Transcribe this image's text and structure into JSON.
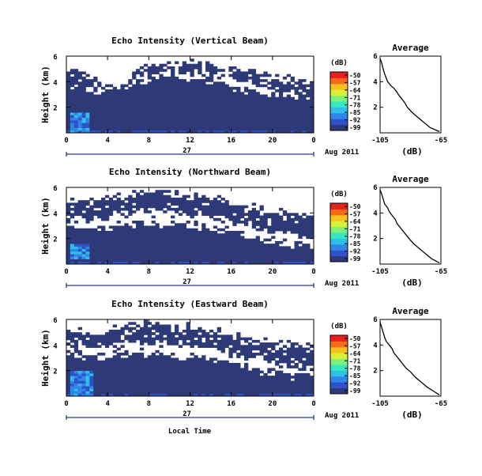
{
  "figure": {
    "xlabel": "Local Time",
    "date_label": "Aug 2011",
    "day_label": "27",
    "colorbar_unit": "(dB)",
    "profile_title": "Average",
    "profile_xlabel": "(dB)"
  },
  "colors": {
    "background_fill": "#ffffff",
    "low_intensity": "#2e3a78",
    "axis": "#000000",
    "date_line": "#2a3a8c"
  },
  "colormap": [
    "#2e3a78",
    "#2f52c8",
    "#2f86e8",
    "#2fbfe8",
    "#34e8c0",
    "#7ff07a",
    "#d8f03a",
    "#f8c020",
    "#f86a18",
    "#e82020"
  ],
  "chart_data": [
    {
      "type": "heatmap",
      "title": "Echo Intensity (Vertical Beam)",
      "ylabel": "Height (km)",
      "xlim": [
        0,
        24
      ],
      "ylim": [
        0,
        6
      ],
      "x_ticks": [
        "0",
        "4",
        "8",
        "12",
        "16",
        "20",
        "0"
      ],
      "y_ticks": [
        "2",
        "4",
        "6"
      ],
      "colorbar_ticks": [
        "-50",
        "-57",
        "-64",
        "-71",
        "-78",
        "-85",
        "-92",
        "-99"
      ],
      "colorbar_range": [
        -99,
        -50
      ],
      "cloud_top_km": [
        5.0,
        4.9,
        4.6,
        4.2,
        3.9,
        3.9,
        4.4,
        4.8,
        5.1,
        5.3,
        5.4,
        5.4,
        5.5,
        5.4,
        5.3,
        5.2,
        5.0,
        4.9,
        4.8,
        4.6,
        4.4,
        4.3,
        4.2,
        4.1,
        4.1
      ],
      "gap_lower_km": [
        3.7,
        3.7,
        3.8,
        3.9,
        3.9,
        4.0,
        4.2,
        4.4,
        4.5,
        4.6,
        4.7,
        4.7,
        4.8,
        4.7,
        4.6,
        4.5,
        4.3,
        4.1,
        3.9,
        3.7,
        3.5,
        3.3,
        3.2,
        3.1,
        3.0
      ],
      "lower_top_km": [
        3.9,
        3.6,
        3.4,
        3.3,
        3.4,
        3.6,
        3.8,
        4.0,
        4.1,
        4.2,
        4.3,
        4.3,
        4.3,
        4.2,
        4.1,
        3.9,
        3.7,
        3.5,
        3.3,
        3.1,
        3.0,
        2.9,
        2.9,
        3.0,
        3.0
      ],
      "near_surface_echo": [
        {
          "x": [
            0.3,
            2.2
          ],
          "y": [
            0.0,
            1.5
          ],
          "level_db": -78
        }
      ],
      "average_profile": {
        "title": "Average",
        "xlim": [
          -105,
          -65
        ],
        "x_ticks": [
          "-105",
          "-65"
        ],
        "y_ticks": [
          "2",
          "4",
          "6"
        ],
        "height_km": [
          5.8,
          5.5,
          5.0,
          4.6,
          4.3,
          4.0,
          3.7,
          3.5,
          3.2,
          3.0,
          2.7,
          2.4,
          2.0,
          1.6,
          1.2,
          0.8,
          0.4,
          0.1
        ],
        "intensity_db": [
          -105,
          -104,
          -103,
          -102,
          -101,
          -100,
          -98,
          -96,
          -94,
          -93,
          -91,
          -89,
          -87,
          -84,
          -80,
          -76,
          -72,
          -66
        ]
      }
    },
    {
      "type": "heatmap",
      "title": "Echo Intensity (Northward Beam)",
      "ylabel": "Height (km)",
      "xlim": [
        0,
        24
      ],
      "ylim": [
        0,
        6
      ],
      "x_ticks": [
        "0",
        "4",
        "8",
        "12",
        "16",
        "20",
        "0"
      ],
      "y_ticks": [
        "2",
        "4",
        "6"
      ],
      "colorbar_ticks": [
        "-50",
        "-57",
        "-64",
        "-71",
        "-78",
        "-85",
        "-92",
        "-99"
      ],
      "colorbar_range": [
        -99,
        -50
      ],
      "cloud_top_km": [
        5.2,
        5.1,
        5.0,
        5.0,
        5.1,
        5.3,
        5.5,
        5.6,
        5.6,
        5.6,
        5.5,
        5.5,
        5.4,
        5.3,
        5.2,
        5.0,
        4.8,
        4.6,
        4.4,
        4.3,
        4.2,
        4.1,
        4.0,
        3.9,
        3.8
      ],
      "gap_lower_km": [
        3.7,
        3.6,
        3.5,
        3.5,
        3.6,
        3.8,
        4.0,
        4.1,
        4.2,
        4.2,
        4.1,
        4.0,
        3.9,
        3.8,
        3.7,
        3.5,
        3.3,
        3.1,
        2.9,
        2.7,
        2.5,
        2.4,
        2.3,
        2.2,
        2.2
      ],
      "lower_top_km": [
        3.3,
        3.1,
        2.9,
        2.8,
        2.9,
        3.1,
        3.2,
        3.2,
        3.2,
        3.1,
        3.1,
        3.0,
        3.0,
        2.9,
        2.8,
        2.7,
        2.5,
        2.3,
        2.1,
        1.9,
        1.7,
        1.6,
        1.5,
        1.5,
        1.5
      ],
      "near_surface_echo": [
        {
          "x": [
            0.3,
            2.2
          ],
          "y": [
            0.5,
            1.6
          ],
          "level_db": -85
        }
      ],
      "average_profile": {
        "title": "Average",
        "xlim": [
          -105,
          -65
        ],
        "x_ticks": [
          "-105",
          "-65"
        ],
        "y_ticks": [
          "2",
          "4",
          "6"
        ],
        "height_km": [
          5.8,
          5.5,
          5.1,
          4.7,
          4.4,
          4.1,
          3.8,
          3.5,
          3.2,
          2.9,
          2.6,
          2.3,
          2.0,
          1.6,
          1.2,
          0.8,
          0.4,
          0.1
        ],
        "intensity_db": [
          -105,
          -104,
          -103,
          -102,
          -100,
          -99,
          -97,
          -95,
          -94,
          -92,
          -90,
          -88,
          -86,
          -83,
          -79,
          -75,
          -71,
          -66
        ]
      }
    },
    {
      "type": "heatmap",
      "title": "Echo Intensity (Eastward Beam)",
      "ylabel": "Height (km)",
      "xlabel": "Local Time",
      "xlim": [
        0,
        24
      ],
      "ylim": [
        0,
        6
      ],
      "x_ticks": [
        "0",
        "4",
        "8",
        "12",
        "16",
        "20",
        "0"
      ],
      "y_ticks": [
        "2",
        "4",
        "6"
      ],
      "colorbar_ticks": [
        "-50",
        "-57",
        "-64",
        "-71",
        "-78",
        "-85",
        "-92",
        "-99"
      ],
      "colorbar_range": [
        -99,
        -50
      ],
      "cloud_top_km": [
        5.2,
        5.1,
        5.0,
        5.0,
        5.1,
        5.3,
        5.5,
        5.6,
        5.6,
        5.6,
        5.5,
        5.4,
        5.4,
        5.3,
        5.2,
        5.0,
        4.8,
        4.6,
        4.4,
        4.3,
        4.2,
        4.1,
        4.0,
        3.9,
        3.9
      ],
      "gap_lower_km": [
        3.9,
        3.8,
        3.8,
        3.8,
        3.9,
        4.0,
        4.2,
        4.2,
        4.2,
        4.1,
        4.0,
        3.9,
        3.9,
        3.8,
        3.7,
        3.5,
        3.3,
        3.1,
        2.9,
        2.7,
        2.5,
        2.4,
        2.3,
        2.3,
        2.3
      ],
      "lower_top_km": [
        3.5,
        3.3,
        3.1,
        3.0,
        3.1,
        3.2,
        3.3,
        3.3,
        3.3,
        3.2,
        3.2,
        3.1,
        3.1,
        3.0,
        2.9,
        2.8,
        2.6,
        2.4,
        2.2,
        2.0,
        1.8,
        1.7,
        1.6,
        1.6,
        1.6
      ],
      "near_surface_echo": [
        {
          "x": [
            0.2,
            2.6
          ],
          "y": [
            0.0,
            1.9
          ],
          "level_db": -78
        }
      ],
      "average_profile": {
        "title": "Average",
        "xlim": [
          -105,
          -65
        ],
        "x_ticks": [
          "-105",
          "-65"
        ],
        "y_ticks": [
          "2",
          "4",
          "6"
        ],
        "height_km": [
          5.8,
          5.4,
          5.0,
          4.6,
          4.3,
          4.0,
          3.7,
          3.4,
          3.1,
          2.8,
          2.5,
          2.2,
          1.9,
          1.5,
          1.1,
          0.7,
          0.4,
          0.1
        ],
        "intensity_db": [
          -105,
          -104,
          -103,
          -102,
          -101,
          -99,
          -97,
          -96,
          -94,
          -92,
          -90,
          -88,
          -85,
          -82,
          -78,
          -74,
          -70,
          -66
        ]
      }
    }
  ]
}
